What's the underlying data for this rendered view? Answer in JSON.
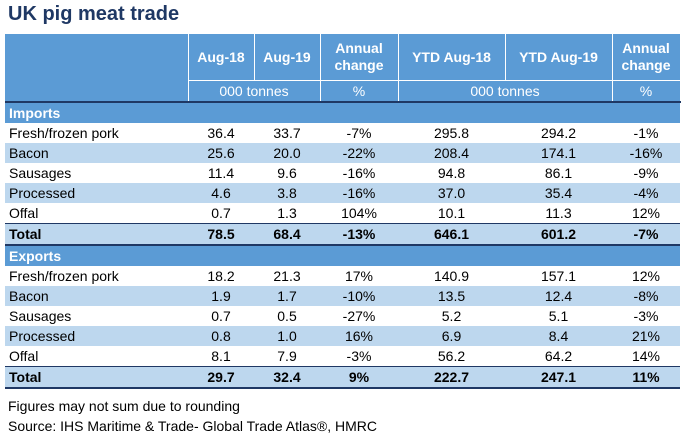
{
  "title": "UK pig meat trade",
  "header": {
    "col1": "Aug-18",
    "col2": "Aug-19",
    "col3": "Annual change",
    "col4": "YTD Aug-18",
    "col5": "YTD Aug-19",
    "col6": "Annual change",
    "unit_a": "000 tonnes",
    "unit_b": "%",
    "unit_c": "000 tonnes",
    "unit_d": "%"
  },
  "imports": {
    "label": "Imports",
    "rows": [
      {
        "name": "Fresh/frozen pork",
        "v": [
          "36.4",
          "33.7",
          "-7%",
          "295.8",
          "294.2",
          "-1%"
        ]
      },
      {
        "name": "Bacon",
        "v": [
          "25.6",
          "20.0",
          "-22%",
          "208.4",
          "174.1",
          "-16%"
        ]
      },
      {
        "name": "Sausages",
        "v": [
          "11.4",
          "9.6",
          "-16%",
          "94.8",
          "86.1",
          "-9%"
        ]
      },
      {
        "name": "Processed",
        "v": [
          "4.6",
          "3.8",
          "-16%",
          "37.0",
          "35.4",
          "-4%"
        ]
      },
      {
        "name": "Offal",
        "v": [
          "0.7",
          "1.3",
          "104%",
          "10.1",
          "11.3",
          "12%"
        ]
      }
    ],
    "total": {
      "name": "Total",
      "v": [
        "78.5",
        "68.4",
        "-13%",
        "646.1",
        "601.2",
        "-7%"
      ]
    }
  },
  "exports": {
    "label": "Exports",
    "rows": [
      {
        "name": "Fresh/frozen pork",
        "v": [
          "18.2",
          "21.3",
          "17%",
          "140.9",
          "157.1",
          "12%"
        ]
      },
      {
        "name": "Bacon",
        "v": [
          "1.9",
          "1.7",
          "-10%",
          "13.5",
          "12.4",
          "-8%"
        ]
      },
      {
        "name": "Sausages",
        "v": [
          "0.7",
          "0.5",
          "-27%",
          "5.2",
          "5.1",
          "-3%"
        ]
      },
      {
        "name": "Processed",
        "v": [
          "0.8",
          "1.0",
          "16%",
          "6.9",
          "8.4",
          "21%"
        ]
      },
      {
        "name": "Offal",
        "v": [
          "8.1",
          "7.9",
          "-3%",
          "56.2",
          "64.2",
          "14%"
        ]
      }
    ],
    "total": {
      "name": "Total",
      "v": [
        "29.7",
        "32.4",
        "9%",
        "222.7",
        "247.1",
        "11%"
      ]
    }
  },
  "notes": {
    "line1": "Figures may not sum due to rounding",
    "line2": "Source: IHS Maritime & Trade- Global Trade Atlas®, HMRC"
  }
}
